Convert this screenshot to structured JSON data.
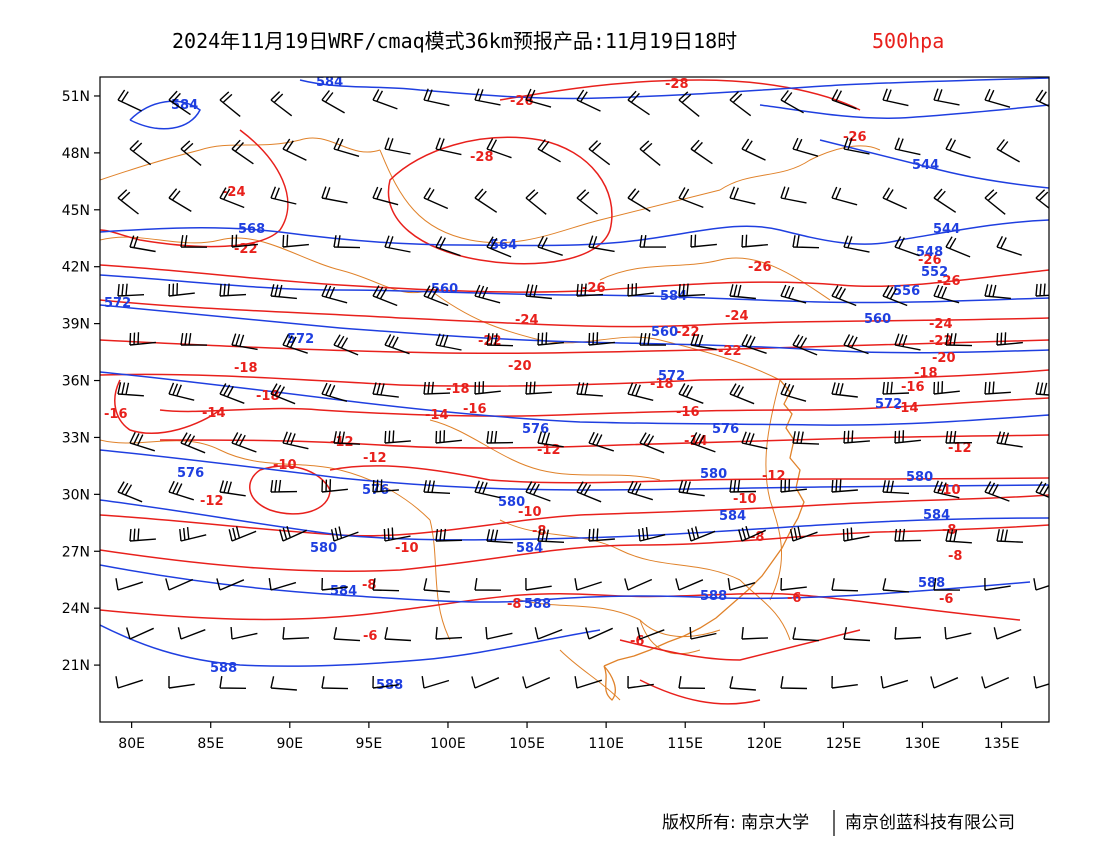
{
  "title": {
    "main": "2024年11月19日WRF/cmaq模式36km预报产品:11月19日18时",
    "level": "500hpa"
  },
  "axes": {
    "lat_labels": [
      "51N",
      "48N",
      "45N",
      "42N",
      "39N",
      "36N",
      "33N",
      "30N",
      "27N",
      "24N",
      "21N"
    ],
    "lon_labels": [
      "80E",
      "85E",
      "90E",
      "95E",
      "100E",
      "105E",
      "110E",
      "115E",
      "120E",
      "125E",
      "130E",
      "135E"
    ],
    "lat_values": [
      51,
      48,
      45,
      42,
      39,
      36,
      33,
      30,
      27,
      24,
      21
    ],
    "lon_values": [
      80,
      85,
      90,
      95,
      100,
      105,
      110,
      115,
      120,
      125,
      130,
      135
    ],
    "lon_range": [
      78,
      138
    ],
    "lat_range": [
      18,
      52
    ]
  },
  "temperature_labels": [
    "-28",
    "-26",
    "-24",
    "-22",
    "-20",
    "-18",
    "-16",
    "-14",
    "-12",
    "-10",
    "-8",
    "-6"
  ],
  "height_labels": [
    "584",
    "568",
    "564",
    "560",
    "556",
    "572",
    "576",
    "580",
    "588",
    "544",
    "548",
    "552"
  ],
  "colors": {
    "temperature": "#e8201c",
    "height": "#1f3fe0",
    "boundary": "#e0822a",
    "wind": "#000000"
  },
  "footer": {
    "left": "版权所有: 南京大学",
    "right": "南京创蓝科技有限公司"
  }
}
